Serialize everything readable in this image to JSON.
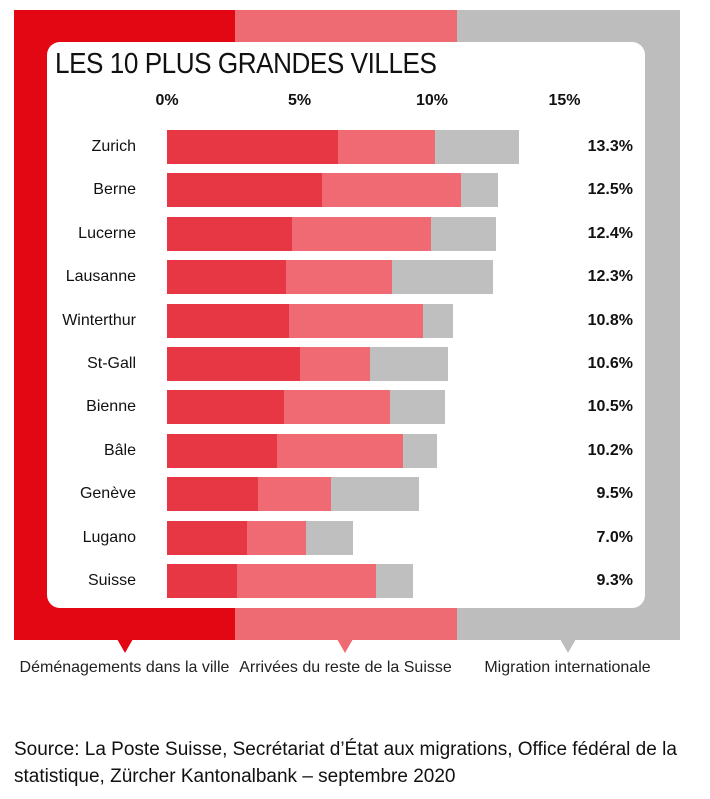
{
  "chart_data": {
    "type": "bar",
    "orientation": "horizontal",
    "stacked": true,
    "title": "LES 10 PLUS GRANDES VILLES",
    "xlim": [
      0,
      15
    ],
    "xticks": [
      "0%",
      "5%",
      "10%",
      "15%"
    ],
    "categories": [
      "Zurich",
      "Berne",
      "Lucerne",
      "Lausanne",
      "Winterthur",
      "St-Gall",
      "Bienne",
      "Bâle",
      "Genève",
      "Lugano",
      "Suisse"
    ],
    "series": [
      {
        "name": "Déménagements dans la ville",
        "color": "#e73744",
        "values": [
          6.45,
          5.85,
          4.7,
          4.5,
          4.6,
          5.0,
          4.4,
          4.15,
          3.45,
          3.0,
          2.65
        ]
      },
      {
        "name": "Arrivées du reste de la Suisse",
        "color": "#ef6a72",
        "values": [
          3.65,
          5.25,
          5.25,
          4.0,
          5.05,
          2.65,
          4.0,
          4.75,
          2.75,
          2.25,
          5.25
        ]
      },
      {
        "name": "Migration internationale",
        "color": "#bfbfbf",
        "values": [
          3.2,
          1.4,
          2.45,
          3.8,
          1.15,
          2.95,
          2.1,
          1.3,
          3.3,
          1.75,
          1.4
        ]
      }
    ],
    "totals": [
      "13.3%",
      "12.5%",
      "12.4%",
      "12.3%",
      "10.8%",
      "10.6%",
      "10.5%",
      "10.2%",
      "9.5%",
      "7.0%",
      "9.3%"
    ],
    "legend_position": "bottom",
    "grid": false
  },
  "frame_colors": [
    "#e30613",
    "#ef6b73",
    "#bdbdbd"
  ],
  "legend": [
    "Déménagements dans la ville",
    "Arrivées du reste de la Suisse",
    "Migration internationale"
  ],
  "source": "Source: La Poste Suisse, Secrétariat d’État aux migrations, Office fédéral de la statistique, Zürcher Kantonalbank – septembre 2020"
}
